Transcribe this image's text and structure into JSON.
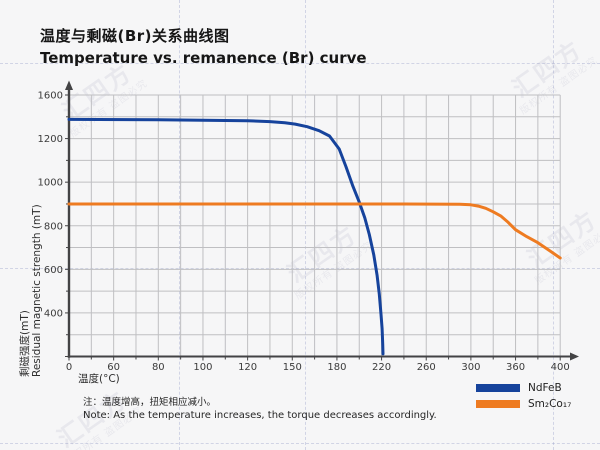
{
  "header": {
    "title_zh": "温度与剩磁(Br)关系曲线图",
    "title_en": "Temperature vs. remanence (Br) curve"
  },
  "chart_data": {
    "type": "line",
    "x_axis": {
      "label_zh": "温度(°C)",
      "ticks": [
        "0",
        "60",
        "80",
        "100",
        "120",
        "150",
        "180",
        "220",
        "260",
        "300",
        "360",
        "400"
      ],
      "arrow": true
    },
    "y_axis": {
      "label_zh": "剩磁强度(mT)",
      "label_en": "Residual magnetic strength (mT)",
      "ticks": [
        "0",
        "400",
        "600",
        "800",
        "1000",
        "1200",
        "1600"
      ],
      "arrow": true
    },
    "grid": true,
    "legend_position": "bottom-right",
    "colors": {
      "grid": "#bfbfc2",
      "axis": "#434345",
      "tick_text": "#3b3b3b"
    },
    "series": [
      {
        "name": "NdFeB",
        "color": "#16439c",
        "points": [
          [
            0,
            1376
          ],
          [
            40,
            1375
          ],
          [
            80,
            1372
          ],
          [
            100,
            1369
          ],
          [
            120,
            1364
          ],
          [
            135,
            1356
          ],
          [
            145,
            1345
          ],
          [
            152,
            1333
          ],
          [
            160,
            1309
          ],
          [
            168,
            1272
          ],
          [
            175,
            1224
          ],
          [
            182,
            1152
          ],
          [
            188,
            1072
          ],
          [
            194,
            985
          ],
          [
            200,
            908
          ],
          [
            205,
            836
          ],
          [
            209,
            760
          ],
          [
            213,
            666
          ],
          [
            216,
            572
          ],
          [
            218,
            486
          ],
          [
            219.5,
            388
          ],
          [
            220.5,
            256
          ],
          [
            221,
            118
          ],
          [
            221.3,
            25
          ]
        ]
      },
      {
        "name": "Sm₂Co₁₇",
        "color": "#ee7b21",
        "points": [
          [
            0,
            900
          ],
          [
            60,
            900
          ],
          [
            120,
            900
          ],
          [
            180,
            900
          ],
          [
            240,
            900
          ],
          [
            290,
            899
          ],
          [
            300,
            896
          ],
          [
            310,
            890
          ],
          [
            320,
            880
          ],
          [
            330,
            864
          ],
          [
            340,
            845
          ],
          [
            350,
            816
          ],
          [
            360,
            782
          ],
          [
            370,
            750
          ],
          [
            380,
            722
          ],
          [
            390,
            688
          ],
          [
            400,
            652
          ]
        ]
      }
    ]
  },
  "note": {
    "line_zh": "注：温度增高，扭矩相应减小。",
    "line_en": "Note: As the temperature increases, the torque decreases accordingly."
  },
  "watermark": {
    "brand": "汇四方",
    "notice": "版权所有 盗图必究"
  }
}
